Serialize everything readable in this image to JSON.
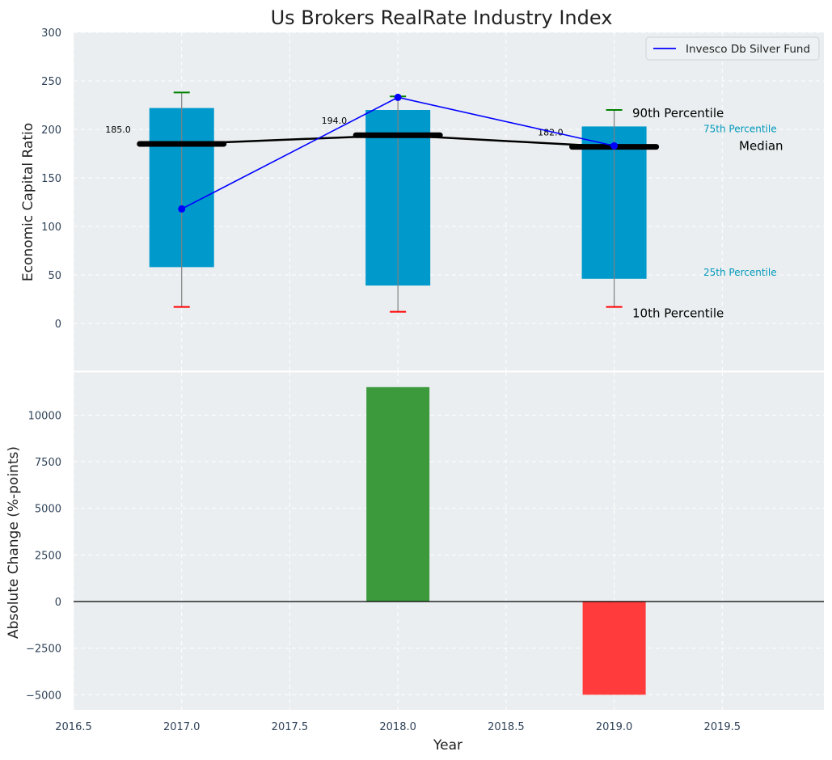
{
  "chart_data": [
    {
      "type": "box",
      "title": "Us Brokers RealRate Industry Index",
      "ylabel": "Economic Capital Ratio",
      "ylim": [
        -50,
        300
      ],
      "yticks": [
        0,
        50,
        100,
        150,
        200,
        250,
        300
      ],
      "grid": true,
      "categories": [
        2017,
        2018,
        2019
      ],
      "p10": [
        17,
        12,
        17
      ],
      "p25": [
        58,
        39,
        46
      ],
      "median": [
        185,
        194,
        182
      ],
      "p75": [
        222,
        220,
        203
      ],
      "p90": [
        238,
        234,
        220
      ],
      "median_labels": [
        "185.0",
        "194.0",
        "182.0"
      ],
      "series": [
        {
          "name": "Invesco Db Silver Fund",
          "x": [
            2017,
            2018,
            2019
          ],
          "values": [
            118,
            233,
            183
          ]
        }
      ],
      "legend_position": "top-right",
      "annotations": {
        "p90": "90th Percentile",
        "p75": "75th Percentile",
        "median": "Median",
        "p25": "25th Percentile",
        "p10": "10th Percentile"
      },
      "colors": {
        "box": "#0099cc",
        "median": "#000000",
        "series": "#0000ff",
        "p90_cap": "#008000",
        "p10_cap": "#ff0000",
        "whisker": "#808080",
        "cyan_label": "#0099bb",
        "background": "#eaeef0",
        "grid": "#ffffff"
      }
    },
    {
      "type": "bar",
      "xlabel": "Year",
      "ylabel": "Absolute Change (%-points)",
      "x": [
        2018,
        2019
      ],
      "values": [
        11500,
        -5000
      ],
      "ylim": [
        -5700,
        12500
      ],
      "yticks": [
        -5000,
        -2500,
        0,
        2500,
        5000,
        7500,
        10000
      ],
      "ytick_labels": [
        "−5000",
        "−2500",
        "0",
        "2500",
        "5000",
        "7500",
        "10000"
      ],
      "xlim": [
        2016.5,
        2019.97
      ],
      "xticks": [
        2016.5,
        2017.0,
        2017.5,
        2018.0,
        2018.5,
        2019.0,
        2019.5
      ],
      "xtick_labels": [
        "2016.5",
        "2017.0",
        "2017.5",
        "2018.0",
        "2018.5",
        "2019.0",
        "2019.5"
      ],
      "grid": true,
      "colors": {
        "positive": "#3c9a3c",
        "negative": "#ff3b3b",
        "zero_line": "#000000"
      }
    }
  ]
}
